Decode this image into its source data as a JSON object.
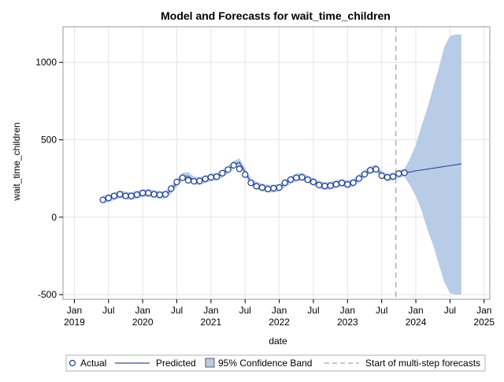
{
  "chart_data": {
    "type": "line",
    "title": "Model and Forecasts for wait_time_children",
    "xlabel": "date",
    "ylabel": "wait_time_children",
    "ylim": [
      -530,
      1230
    ],
    "y_ticks": [
      -500,
      0,
      500,
      1000
    ],
    "x_ticks": [
      {
        "date": "2019-01",
        "label": "Jan",
        "year": "2019"
      },
      {
        "date": "2019-07",
        "label": "Jul",
        "year": ""
      },
      {
        "date": "2020-01",
        "label": "Jan",
        "year": "2020"
      },
      {
        "date": "2020-07",
        "label": "Jul",
        "year": ""
      },
      {
        "date": "2021-01",
        "label": "Jan",
        "year": "2021"
      },
      {
        "date": "2021-07",
        "label": "Jul",
        "year": ""
      },
      {
        "date": "2022-01",
        "label": "Jan",
        "year": "2022"
      },
      {
        "date": "2022-07",
        "label": "Jul",
        "year": ""
      },
      {
        "date": "2023-01",
        "label": "Jan",
        "year": "2023"
      },
      {
        "date": "2023-07",
        "label": "Jul",
        "year": ""
      },
      {
        "date": "2024-01",
        "label": "Jan",
        "year": "2024"
      },
      {
        "date": "2024-07",
        "label": "Jul",
        "year": ""
      },
      {
        "date": "2025-01",
        "label": "Jan",
        "year": "2025"
      }
    ],
    "forecast_start": "2023-09",
    "grid": true,
    "legend_position": "bottom",
    "series": [
      {
        "name": "Actual",
        "style": "markers",
        "x": [
          "2019-06",
          "2019-07",
          "2019-08",
          "2019-09",
          "2019-10",
          "2019-11",
          "2019-12",
          "2020-01",
          "2020-02",
          "2020-03",
          "2020-04",
          "2020-05",
          "2020-06",
          "2020-07",
          "2020-08",
          "2020-09",
          "2020-10",
          "2020-11",
          "2020-12",
          "2021-01",
          "2021-02",
          "2021-03",
          "2021-04",
          "2021-05",
          "2021-06",
          "2021-07",
          "2021-08",
          "2021-09",
          "2021-10",
          "2021-11",
          "2021-12",
          "2022-01",
          "2022-02",
          "2022-03",
          "2022-04",
          "2022-05",
          "2022-06",
          "2022-07",
          "2022-08",
          "2022-09",
          "2022-10",
          "2022-11",
          "2022-12",
          "2023-01",
          "2023-02",
          "2023-03",
          "2023-04",
          "2023-05",
          "2023-06",
          "2023-07",
          "2023-08",
          "2023-09"
        ],
        "values": [
          112,
          124,
          138,
          148,
          138,
          138,
          146,
          156,
          156,
          148,
          145,
          148,
          185,
          228,
          255,
          238,
          232,
          235,
          248,
          258,
          262,
          285,
          308,
          335,
          312,
          275,
          222,
          200,
          192,
          182,
          187,
          192,
          223,
          243,
          255,
          258,
          242,
          228,
          208,
          202,
          204,
          213,
          222,
          212,
          223,
          250,
          278,
          303,
          310,
          268,
          258,
          263
        ]
      },
      {
        "name": "Actual (continued)",
        "style": "markers",
        "x": [
          "2023-10",
          "2023-11"
        ],
        "values": [
          282,
          287
        ]
      },
      {
        "name": "Predicted",
        "style": "line",
        "x": [
          "2019-06",
          "2019-07",
          "2019-08",
          "2019-09",
          "2019-10",
          "2019-11",
          "2019-12",
          "2020-01",
          "2020-02",
          "2020-03",
          "2020-04",
          "2020-05",
          "2020-06",
          "2020-07",
          "2020-08",
          "2020-09",
          "2020-10",
          "2020-11",
          "2020-12",
          "2021-01",
          "2021-02",
          "2021-03",
          "2021-04",
          "2021-05",
          "2021-06",
          "2021-07",
          "2021-08",
          "2021-09",
          "2021-10",
          "2021-11",
          "2021-12",
          "2022-01",
          "2022-02",
          "2022-03",
          "2022-04",
          "2022-05",
          "2022-06",
          "2022-07",
          "2022-08",
          "2022-09",
          "2022-10",
          "2022-11",
          "2022-12",
          "2023-01",
          "2023-02",
          "2023-03",
          "2023-04",
          "2023-05",
          "2023-06",
          "2023-07",
          "2023-08",
          "2023-09",
          "2023-10",
          "2023-11",
          "2023-12",
          "2024-01",
          "2024-02",
          "2024-03",
          "2024-04",
          "2024-05",
          "2024-06",
          "2024-07",
          "2024-08",
          "2024-09"
        ],
        "values": [
          115,
          122,
          136,
          148,
          140,
          136,
          145,
          156,
          157,
          150,
          144,
          145,
          175,
          222,
          262,
          265,
          238,
          232,
          245,
          258,
          262,
          280,
          308,
          338,
          355,
          292,
          228,
          205,
          192,
          185,
          185,
          190,
          218,
          240,
          258,
          262,
          245,
          228,
          210,
          200,
          204,
          213,
          222,
          212,
          222,
          252,
          280,
          305,
          315,
          275,
          256,
          262,
          280,
          287,
          292,
          300,
          305,
          311,
          316,
          322,
          328,
          333,
          339,
          345
        ]
      },
      {
        "name": "95% Confidence Band",
        "style": "band",
        "x": [
          "2019-06",
          "2019-07",
          "2019-08",
          "2019-09",
          "2019-10",
          "2019-11",
          "2019-12",
          "2020-01",
          "2020-02",
          "2020-03",
          "2020-04",
          "2020-05",
          "2020-06",
          "2020-07",
          "2020-08",
          "2020-09",
          "2020-10",
          "2020-11",
          "2020-12",
          "2021-01",
          "2021-02",
          "2021-03",
          "2021-04",
          "2021-05",
          "2021-06",
          "2021-07",
          "2021-08",
          "2021-09",
          "2021-10",
          "2021-11",
          "2021-12",
          "2022-01",
          "2022-02",
          "2022-03",
          "2022-04",
          "2022-05",
          "2022-06",
          "2022-07",
          "2022-08",
          "2022-09",
          "2022-10",
          "2022-11",
          "2022-12",
          "2023-01",
          "2023-02",
          "2023-03",
          "2023-04",
          "2023-05",
          "2023-06",
          "2023-07",
          "2023-08",
          "2023-09",
          "2023-10",
          "2023-11",
          "2023-12",
          "2024-01",
          "2024-02",
          "2024-03",
          "2024-04",
          "2024-05",
          "2024-06",
          "2024-07",
          "2024-08",
          "2024-09"
        ],
        "lower": [
          90,
          97,
          111,
          123,
          115,
          111,
          120,
          131,
          132,
          125,
          119,
          120,
          150,
          197,
          237,
          240,
          213,
          207,
          220,
          233,
          237,
          255,
          283,
          313,
          330,
          267,
          203,
          180,
          167,
          160,
          160,
          165,
          193,
          215,
          233,
          237,
          220,
          203,
          185,
          175,
          179,
          188,
          197,
          187,
          197,
          227,
          255,
          280,
          290,
          250,
          231,
          237,
          255,
          262,
          205,
          135,
          45,
          -75,
          -175,
          -300,
          -420,
          -490,
          -500,
          -500
        ],
        "upper": [
          140,
          147,
          161,
          173,
          165,
          161,
          170,
          181,
          182,
          175,
          169,
          170,
          200,
          247,
          287,
          290,
          263,
          257,
          270,
          283,
          287,
          305,
          333,
          363,
          380,
          317,
          253,
          230,
          217,
          210,
          210,
          215,
          243,
          265,
          283,
          287,
          270,
          253,
          235,
          225,
          229,
          238,
          247,
          237,
          247,
          277,
          305,
          330,
          340,
          300,
          281,
          287,
          305,
          312,
          380,
          470,
          590,
          700,
          830,
          960,
          1100,
          1170,
          1180,
          1180
        ]
      }
    ]
  },
  "legend": {
    "actual": "Actual",
    "predicted": "Predicted",
    "band": "95% Confidence Band",
    "start": "Start of multi-step forecasts"
  },
  "colors": {
    "marker_stroke": "#1f3f8c",
    "predicted_line": "#3a4f8f",
    "band_fill": "#b8cce8",
    "band_stroke": "#9db5da",
    "forecast_line": "#8c8c8c",
    "grid": "#e4e4e4",
    "frame": "#9a9a9a"
  }
}
